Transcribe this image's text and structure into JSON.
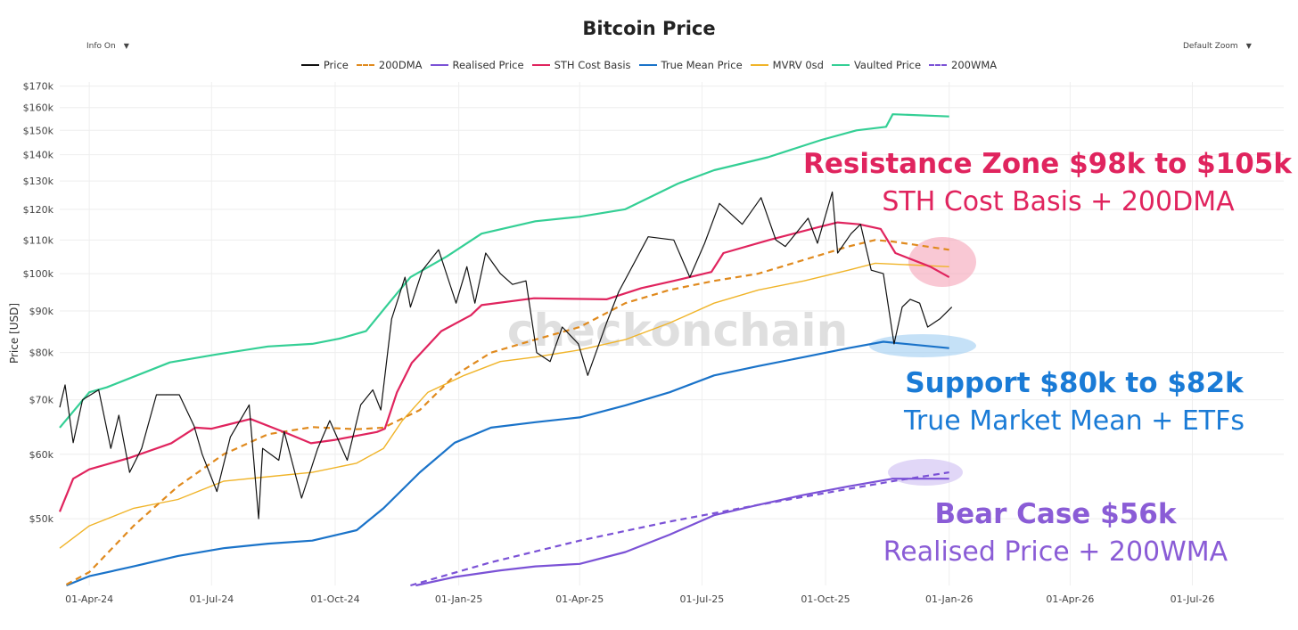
{
  "controls": {
    "info": "Info On",
    "zoom": "Default Zoom",
    "arrow": "▼"
  },
  "colors": {
    "price": "#111111",
    "dma200": "#e08a1e",
    "realised": "#7b52d6",
    "sth": "#e0245e",
    "truemean": "#1a73c9",
    "mvrv": "#f0b429",
    "vaulted": "#34cf95",
    "wma200": "#7b52d6"
  },
  "chart_data": {
    "type": "line",
    "title": "Bitcoin Price",
    "xlabel": "",
    "ylabel": "Price [USD]",
    "yscale": "log",
    "ylim": [
      41400,
      172000
    ],
    "xlim": [
      "2024-03-10",
      "2026-09-07"
    ],
    "grid": true,
    "legend_position": "top",
    "watermark": "checkonchain",
    "yticks": [
      {
        "v": 50000,
        "label": "$50k"
      },
      {
        "v": 60000,
        "label": "$60k"
      },
      {
        "v": 70000,
        "label": "$70k"
      },
      {
        "v": 80000,
        "label": "$80k"
      },
      {
        "v": 90000,
        "label": "$90k"
      },
      {
        "v": 100000,
        "label": "$100k"
      },
      {
        "v": 110000,
        "label": "$110k"
      },
      {
        "v": 120000,
        "label": "$120k"
      },
      {
        "v": 130000,
        "label": "$130k"
      },
      {
        "v": 140000,
        "label": "$140k"
      },
      {
        "v": 150000,
        "label": "$150k"
      },
      {
        "v": 160000,
        "label": "$160k"
      },
      {
        "v": 170000,
        "label": "$170k"
      }
    ],
    "xticks": [
      {
        "d": "2024-04-01",
        "label": "01-Apr-24"
      },
      {
        "d": "2024-07-01",
        "label": "01-Jul-24"
      },
      {
        "d": "2024-10-01",
        "label": "01-Oct-24"
      },
      {
        "d": "2025-01-01",
        "label": "01-Jan-25"
      },
      {
        "d": "2025-04-01",
        "label": "01-Apr-25"
      },
      {
        "d": "2025-07-01",
        "label": "01-Jul-25"
      },
      {
        "d": "2025-10-01",
        "label": "01-Oct-25"
      },
      {
        "d": "2026-01-01",
        "label": "01-Jan-26"
      },
      {
        "d": "2026-04-01",
        "label": "01-Apr-26"
      },
      {
        "d": "2026-07-01",
        "label": "01-Jul-26"
      }
    ],
    "series": [
      {
        "key": "price",
        "name": "Price",
        "dashed": false,
        "points": [
          [
            "2024-03-10",
            68500
          ],
          [
            "2024-03-14",
            73000
          ],
          [
            "2024-03-20",
            62000
          ],
          [
            "2024-03-27",
            70000
          ],
          [
            "2024-04-08",
            72000
          ],
          [
            "2024-04-17",
            61000
          ],
          [
            "2024-04-23",
            67000
          ],
          [
            "2024-05-01",
            57000
          ],
          [
            "2024-05-10",
            61000
          ],
          [
            "2024-05-21",
            71000
          ],
          [
            "2024-06-07",
            71000
          ],
          [
            "2024-06-18",
            65000
          ],
          [
            "2024-06-24",
            60000
          ],
          [
            "2024-07-05",
            54000
          ],
          [
            "2024-07-15",
            63000
          ],
          [
            "2024-07-29",
            69000
          ],
          [
            "2024-08-05",
            50000
          ],
          [
            "2024-08-08",
            61000
          ],
          [
            "2024-08-20",
            59000
          ],
          [
            "2024-08-24",
            64000
          ],
          [
            "2024-09-06",
            53000
          ],
          [
            "2024-09-18",
            61000
          ],
          [
            "2024-09-27",
            66000
          ],
          [
            "2024-10-10",
            59000
          ],
          [
            "2024-10-20",
            69000
          ],
          [
            "2024-10-29",
            72000
          ],
          [
            "2024-11-04",
            68000
          ],
          [
            "2024-11-12",
            88000
          ],
          [
            "2024-11-22",
            99000
          ],
          [
            "2024-11-26",
            91000
          ],
          [
            "2024-12-05",
            101000
          ],
          [
            "2024-12-17",
            107000
          ],
          [
            "2024-12-30",
            92000
          ],
          [
            "2025-01-07",
            102000
          ],
          [
            "2025-01-13",
            92000
          ],
          [
            "2025-01-21",
            106000
          ],
          [
            "2025-02-01",
            100000
          ],
          [
            "2025-02-10",
            97000
          ],
          [
            "2025-02-20",
            98000
          ],
          [
            "2025-02-28",
            80000
          ],
          [
            "2025-03-10",
            78000
          ],
          [
            "2025-03-19",
            86000
          ],
          [
            "2025-03-31",
            82000
          ],
          [
            "2025-04-07",
            75000
          ],
          [
            "2025-04-21",
            87000
          ],
          [
            "2025-04-30",
            95000
          ],
          [
            "2025-05-22",
            111000
          ],
          [
            "2025-06-10",
            110000
          ],
          [
            "2025-06-22",
            99000
          ],
          [
            "2025-07-03",
            109000
          ],
          [
            "2025-07-14",
            122000
          ],
          [
            "2025-07-31",
            115000
          ],
          [
            "2025-08-14",
            124000
          ],
          [
            "2025-08-25",
            110000
          ],
          [
            "2025-09-01",
            108000
          ],
          [
            "2025-09-18",
            117000
          ],
          [
            "2025-09-25",
            109000
          ],
          [
            "2025-10-06",
            126000
          ],
          [
            "2025-10-10",
            106000
          ],
          [
            "2025-10-20",
            112000
          ],
          [
            "2025-10-27",
            115000
          ],
          [
            "2025-11-04",
            101000
          ],
          [
            "2025-11-13",
            100000
          ],
          [
            "2025-11-21",
            82000
          ],
          [
            "2025-11-27",
            91000
          ],
          [
            "2025-12-03",
            93000
          ],
          [
            "2025-12-10",
            92000
          ],
          [
            "2025-12-16",
            86000
          ],
          [
            "2025-12-25",
            88000
          ],
          [
            "2026-01-03",
            91000
          ]
        ]
      },
      {
        "key": "dma200",
        "name": "200DMA",
        "dashed": true,
        "points": [
          [
            "2024-03-15",
            41500
          ],
          [
            "2024-04-01",
            43000
          ],
          [
            "2024-05-04",
            49000
          ],
          [
            "2024-06-06",
            54800
          ],
          [
            "2024-07-10",
            60000
          ],
          [
            "2024-08-12",
            63500
          ],
          [
            "2024-09-14",
            64800
          ],
          [
            "2024-10-17",
            64400
          ],
          [
            "2024-11-06",
            64700
          ],
          [
            "2024-12-03",
            68000
          ],
          [
            "2024-12-29",
            75000
          ],
          [
            "2025-01-25",
            80000
          ],
          [
            "2025-02-27",
            83000
          ],
          [
            "2025-04-01",
            86000
          ],
          [
            "2025-05-05",
            92000
          ],
          [
            "2025-06-07",
            95500
          ],
          [
            "2025-07-10",
            98000
          ],
          [
            "2025-08-12",
            100000
          ],
          [
            "2025-09-15",
            104000
          ],
          [
            "2025-10-18",
            108000
          ],
          [
            "2025-11-07",
            110000
          ],
          [
            "2025-11-20",
            109500
          ],
          [
            "2026-01-01",
            107000
          ]
        ]
      },
      {
        "key": "realised",
        "name": "Realised Price",
        "dashed": false,
        "points": [
          [
            "2024-11-30",
            41400
          ],
          [
            "2024-12-29",
            42400
          ],
          [
            "2025-02-01",
            43200
          ],
          [
            "2025-02-27",
            43700
          ],
          [
            "2025-04-01",
            44000
          ],
          [
            "2025-05-05",
            45500
          ],
          [
            "2025-06-07",
            47800
          ],
          [
            "2025-07-10",
            50500
          ],
          [
            "2025-08-12",
            52000
          ],
          [
            "2025-09-15",
            53500
          ],
          [
            "2025-10-18",
            54800
          ],
          [
            "2025-11-20",
            56000
          ],
          [
            "2026-01-01",
            56000
          ]
        ]
      },
      {
        "key": "sth",
        "name": "STH Cost Basis",
        "dashed": false,
        "points": [
          [
            "2024-03-10",
            51000
          ],
          [
            "2024-03-20",
            56000
          ],
          [
            "2024-04-01",
            57500
          ],
          [
            "2024-05-01",
            59400
          ],
          [
            "2024-06-01",
            61900
          ],
          [
            "2024-06-19",
            64700
          ],
          [
            "2024-07-01",
            64500
          ],
          [
            "2024-07-30",
            66300
          ],
          [
            "2024-08-26",
            63700
          ],
          [
            "2024-09-13",
            61900
          ],
          [
            "2024-10-01",
            62500
          ],
          [
            "2024-11-01",
            63900
          ],
          [
            "2024-11-07",
            64500
          ],
          [
            "2024-11-16",
            71500
          ],
          [
            "2024-11-27",
            77700
          ],
          [
            "2024-12-19",
            85000
          ],
          [
            "2025-01-10",
            88900
          ],
          [
            "2025-01-18",
            91500
          ],
          [
            "2025-02-26",
            93300
          ],
          [
            "2025-04-21",
            93000
          ],
          [
            "2025-05-17",
            96000
          ],
          [
            "2025-06-10",
            98000
          ],
          [
            "2025-07-08",
            100500
          ],
          [
            "2025-07-17",
            106000
          ],
          [
            "2025-08-20",
            110000
          ],
          [
            "2025-09-25",
            114000
          ],
          [
            "2025-10-10",
            115600
          ],
          [
            "2025-10-26",
            115000
          ],
          [
            "2025-11-11",
            113500
          ],
          [
            "2025-11-22",
            106000
          ],
          [
            "2025-12-18",
            102000
          ],
          [
            "2026-01-01",
            99000
          ]
        ]
      },
      {
        "key": "truemean",
        "name": "True Mean Price",
        "dashed": false,
        "points": [
          [
            "2024-03-15",
            41400
          ],
          [
            "2024-04-01",
            42500
          ],
          [
            "2024-05-04",
            43700
          ],
          [
            "2024-06-06",
            45000
          ],
          [
            "2024-07-10",
            46000
          ],
          [
            "2024-08-12",
            46600
          ],
          [
            "2024-09-14",
            47000
          ],
          [
            "2024-10-17",
            48400
          ],
          [
            "2024-11-06",
            51500
          ],
          [
            "2024-12-03",
            57000
          ],
          [
            "2024-12-29",
            62000
          ],
          [
            "2025-01-25",
            64700
          ],
          [
            "2025-02-27",
            65700
          ],
          [
            "2025-04-01",
            66600
          ],
          [
            "2025-05-05",
            68900
          ],
          [
            "2025-06-07",
            71500
          ],
          [
            "2025-07-10",
            75000
          ],
          [
            "2025-08-12",
            77000
          ],
          [
            "2025-09-15",
            79000
          ],
          [
            "2025-10-18",
            81000
          ],
          [
            "2025-11-13",
            82500
          ],
          [
            "2026-01-01",
            81000
          ]
        ]
      },
      {
        "key": "mvrv",
        "name": "MVRV 0sd",
        "dashed": false,
        "points": [
          [
            "2024-03-10",
            46000
          ],
          [
            "2024-04-01",
            49000
          ],
          [
            "2024-05-04",
            51500
          ],
          [
            "2024-06-06",
            52800
          ],
          [
            "2024-07-10",
            55600
          ],
          [
            "2024-08-12",
            56300
          ],
          [
            "2024-09-14",
            57000
          ],
          [
            "2024-10-17",
            58500
          ],
          [
            "2024-11-06",
            61000
          ],
          [
            "2024-11-20",
            66000
          ],
          [
            "2024-12-09",
            71500
          ],
          [
            "2025-01-05",
            75000
          ],
          [
            "2025-02-01",
            78000
          ],
          [
            "2025-02-27",
            79000
          ],
          [
            "2025-04-01",
            80600
          ],
          [
            "2025-05-05",
            83000
          ],
          [
            "2025-06-07",
            87000
          ],
          [
            "2025-07-10",
            92000
          ],
          [
            "2025-08-12",
            95500
          ],
          [
            "2025-09-15",
            98000
          ],
          [
            "2025-10-18",
            101000
          ],
          [
            "2025-11-07",
            103000
          ],
          [
            "2026-01-01",
            102000
          ]
        ]
      },
      {
        "key": "vaulted",
        "name": "Vaulted Price",
        "dashed": false,
        "points": [
          [
            "2024-03-10",
            64700
          ],
          [
            "2024-04-01",
            71500
          ],
          [
            "2024-04-14",
            72500
          ],
          [
            "2024-05-31",
            77800
          ],
          [
            "2024-07-03",
            79500
          ],
          [
            "2024-08-12",
            81400
          ],
          [
            "2024-09-14",
            82000
          ],
          [
            "2024-10-04",
            83200
          ],
          [
            "2024-10-24",
            85000
          ],
          [
            "2024-11-10",
            92000
          ],
          [
            "2024-11-26",
            99000
          ],
          [
            "2024-12-23",
            105000
          ],
          [
            "2025-01-18",
            112000
          ],
          [
            "2025-02-27",
            116000
          ],
          [
            "2025-04-01",
            117500
          ],
          [
            "2025-05-05",
            120000
          ],
          [
            "2025-06-13",
            129000
          ],
          [
            "2025-07-10",
            134000
          ],
          [
            "2025-08-19",
            139000
          ],
          [
            "2025-09-28",
            146000
          ],
          [
            "2025-10-24",
            150000
          ],
          [
            "2025-11-15",
            151500
          ],
          [
            "2025-11-20",
            157000
          ],
          [
            "2026-01-01",
            156000
          ]
        ]
      },
      {
        "key": "wma200",
        "name": "200WMA",
        "dashed": true,
        "points": [
          [
            "2024-11-26",
            41400
          ],
          [
            "2025-01-25",
            44200
          ],
          [
            "2025-04-01",
            47000
          ],
          [
            "2025-06-07",
            49600
          ],
          [
            "2025-08-12",
            52000
          ],
          [
            "2025-10-18",
            54400
          ],
          [
            "2025-11-20",
            55600
          ],
          [
            "2026-01-01",
            57000
          ]
        ]
      }
    ],
    "annotations": [
      {
        "key": "resistance",
        "title": "Resistance Zone $98k to $105k",
        "subtitle": "STH Cost Basis + 200DMA",
        "color": "#e0245e",
        "highlight": "#f5a3b8"
      },
      {
        "key": "support",
        "title": "Support $80k to $82k",
        "subtitle": "True Market Mean + ETFs",
        "color": "#1a7bd6",
        "highlight": "#9fcdf2"
      },
      {
        "key": "bear",
        "title": "Bear Case $56k",
        "subtitle": "Realised Price + 200WMA",
        "color": "#8a5cd6",
        "highlight": "#cdbcf2"
      }
    ]
  }
}
